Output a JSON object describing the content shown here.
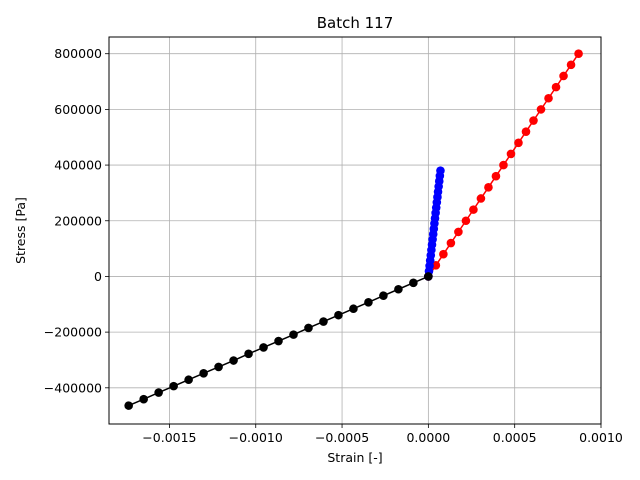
{
  "chart_data": {
    "type": "line",
    "title": "Batch 117",
    "xlabel": "Strain [-]",
    "ylabel": "Stress [Pa]",
    "xlim": [
      -0.00185,
      0.001
    ],
    "ylim": [
      -530000,
      860000
    ],
    "xticks": [
      -0.0015,
      -0.001,
      -0.0005,
      0.0,
      0.0005,
      0.001
    ],
    "xtick_labels": [
      "−0.0015",
      "−0.0010",
      "−0.0005",
      "0.0000",
      "0.0005",
      "0.0010"
    ],
    "yticks": [
      -400000,
      -200000,
      0,
      200000,
      400000,
      600000,
      800000
    ],
    "ytick_labels": [
      "−400000",
      "−200000",
      "0",
      "200000",
      "400000",
      "600000",
      "800000"
    ],
    "grid": true,
    "series": [
      {
        "color": "#ff0000",
        "marker": "circle",
        "x": [
          0.0,
          4.35e-05,
          8.7e-05,
          0.0001305,
          0.000174,
          0.0002175,
          0.000261,
          0.0003045,
          0.000348,
          0.0003915,
          0.000435,
          0.0004785,
          0.000522,
          0.0005655,
          0.000609,
          0.0006525,
          0.000696,
          0.0007395,
          0.000783,
          0.0008265,
          0.00087
        ],
        "y": [
          0,
          40000,
          80000,
          120000,
          160000,
          200000,
          240000,
          280000,
          320000,
          360000,
          400000,
          440000,
          480000,
          520000,
          560000,
          600000,
          640000,
          680000,
          720000,
          760000,
          800000
        ]
      },
      {
        "color": "#0000ff",
        "marker": "circle",
        "x": [
          0.0,
          3.5e-06,
          7e-06,
          1.05e-05,
          1.4e-05,
          1.75e-05,
          2.1e-05,
          2.45e-05,
          2.8e-05,
          3.15e-05,
          3.5e-05,
          3.85e-05,
          4.2e-05,
          4.55e-05,
          4.9e-05,
          5.25e-05,
          5.6e-05,
          5.95e-05,
          6.3e-05,
          6.65e-05,
          7e-05
        ],
        "y": [
          0,
          19000,
          38000,
          57000,
          76000,
          95000,
          114000,
          133000,
          152000,
          171000,
          190000,
          209000,
          228000,
          247000,
          266000,
          285000,
          304000,
          323000,
          342000,
          361000,
          380000
        ]
      },
      {
        "color": "#000000",
        "marker": "circle",
        "x": [
          0.0,
          -8.68e-05,
          -0.0001736,
          -0.0002604,
          -0.0003472,
          -0.000434,
          -0.0005208,
          -0.0006076,
          -0.0006944,
          -0.0007812,
          -0.000868,
          -0.0009548,
          -0.0010416,
          -0.0011284,
          -0.0012152,
          -0.001302,
          -0.0013888,
          -0.0014756,
          -0.0015624,
          -0.0016492,
          -0.001736
        ],
        "y": [
          0,
          -23000,
          -46000,
          -69000,
          -93000,
          -116000,
          -139000,
          -162000,
          -185000,
          -209000,
          -232000,
          -255000,
          -278000,
          -302000,
          -325000,
          -348000,
          -371000,
          -394000,
          -417000,
          -441000,
          -464000
        ]
      }
    ]
  }
}
